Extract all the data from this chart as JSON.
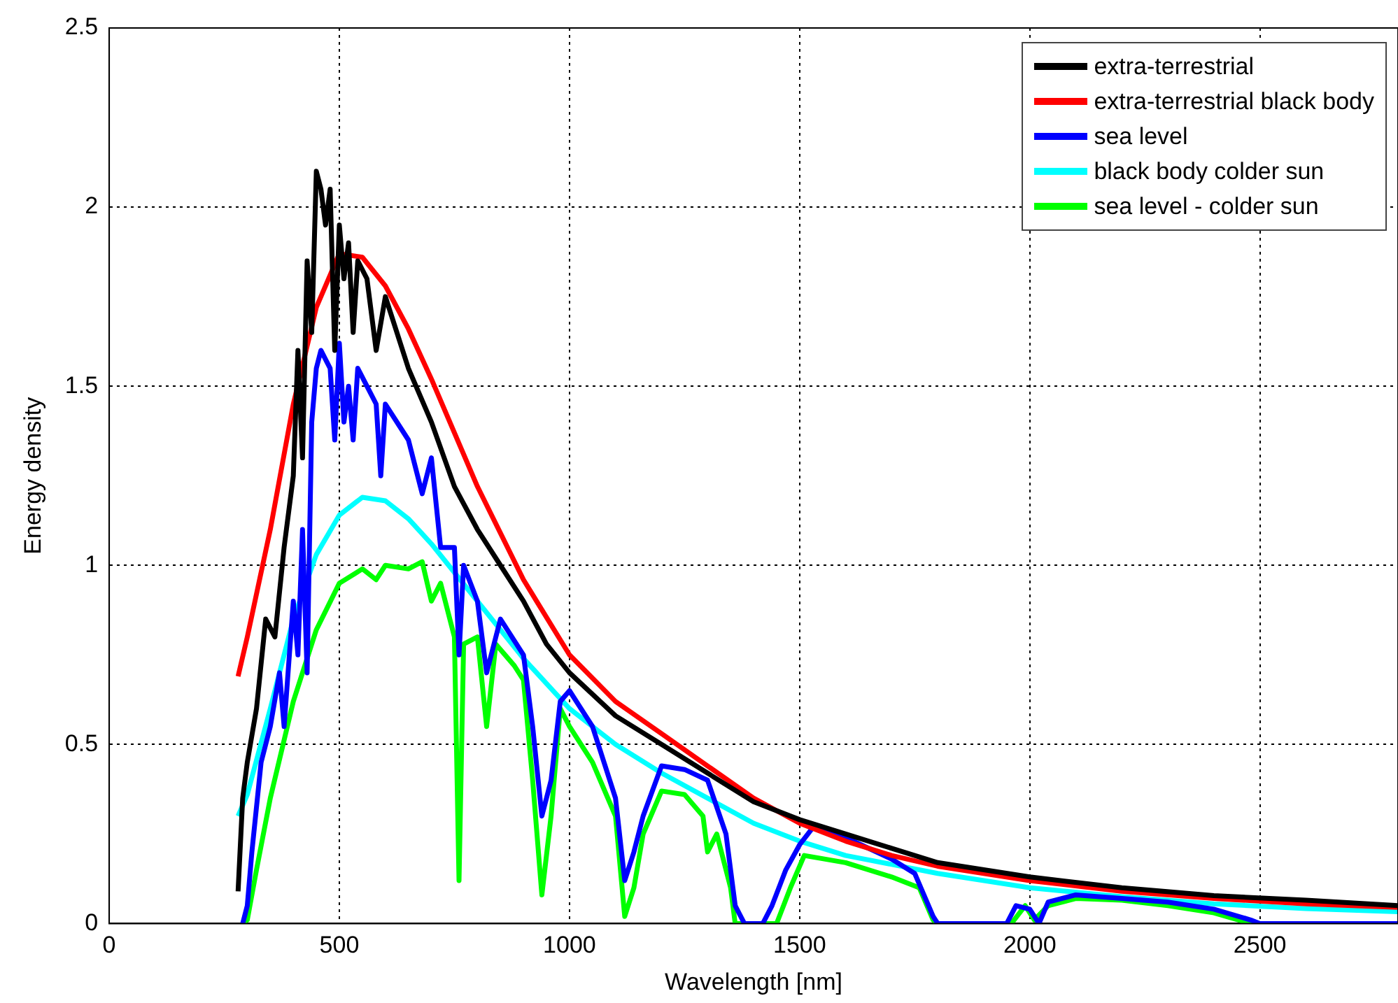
{
  "chart_data": {
    "type": "line",
    "xlabel": "Wavelength [nm]",
    "ylabel": "Energy density",
    "xlim": [
      0,
      2800
    ],
    "xticks": [
      0,
      500,
      1000,
      1500,
      2000,
      2500
    ],
    "ylim": [
      0,
      2.5
    ],
    "yticks": [
      0,
      0.5,
      1,
      1.5,
      2,
      2.5
    ],
    "grid": true,
    "legend": "top right",
    "marker": "none",
    "line_style": "solid",
    "series": [
      {
        "name": "extra-terrestrial",
        "color": "#000000",
        "x": [
          280,
          290,
          300,
          320,
          340,
          360,
          380,
          400,
          410,
          420,
          430,
          440,
          450,
          460,
          470,
          480,
          490,
          500,
          510,
          520,
          530,
          540,
          560,
          580,
          600,
          650,
          700,
          750,
          800,
          850,
          900,
          950,
          1000,
          1100,
          1200,
          1300,
          1400,
          1500,
          1600,
          1700,
          1800,
          2000,
          2200,
          2400,
          2600,
          2800
        ],
        "values": [
          0.09,
          0.35,
          0.45,
          0.6,
          0.85,
          0.8,
          1.05,
          1.25,
          1.6,
          1.3,
          1.85,
          1.65,
          2.1,
          2.05,
          1.95,
          2.05,
          1.6,
          1.95,
          1.8,
          1.9,
          1.65,
          1.85,
          1.8,
          1.6,
          1.75,
          1.55,
          1.4,
          1.22,
          1.1,
          1.0,
          0.9,
          0.78,
          0.7,
          0.58,
          0.5,
          0.42,
          0.34,
          0.29,
          0.25,
          0.21,
          0.17,
          0.13,
          0.1,
          0.078,
          0.065,
          0.05
        ]
      },
      {
        "name": "extra-terrestrial black body",
        "color": "#ff0000",
        "x": [
          280,
          300,
          350,
          400,
          450,
          500,
          550,
          600,
          650,
          700,
          800,
          900,
          1000,
          1100,
          1200,
          1300,
          1400,
          1500,
          1600,
          1700,
          1800,
          2000,
          2200,
          2400,
          2600,
          2800
        ],
        "values": [
          0.69,
          0.8,
          1.1,
          1.45,
          1.72,
          1.87,
          1.86,
          1.78,
          1.66,
          1.52,
          1.22,
          0.96,
          0.75,
          0.62,
          0.53,
          0.44,
          0.35,
          0.28,
          0.23,
          0.19,
          0.16,
          0.12,
          0.09,
          0.07,
          0.055,
          0.045
        ]
      },
      {
        "name": "sea level",
        "color": "#0000ff",
        "x": [
          290,
          300,
          310,
          330,
          350,
          370,
          380,
          400,
          410,
          420,
          430,
          440,
          450,
          460,
          480,
          490,
          500,
          510,
          520,
          530,
          540,
          560,
          580,
          590,
          600,
          650,
          680,
          700,
          720,
          750,
          760,
          770,
          800,
          820,
          850,
          900,
          920,
          940,
          960,
          980,
          1000,
          1050,
          1100,
          1120,
          1140,
          1160,
          1200,
          1250,
          1300,
          1340,
          1360,
          1380,
          1420,
          1440,
          1470,
          1500,
          1530,
          1600,
          1700,
          1750,
          1790,
          1800,
          1950,
          1970,
          2000,
          2020,
          2040,
          2100,
          2200,
          2300,
          2400,
          2480,
          2500,
          2800
        ],
        "values": [
          0,
          0.05,
          0.2,
          0.45,
          0.55,
          0.7,
          0.55,
          0.9,
          0.75,
          1.1,
          0.7,
          1.4,
          1.55,
          1.6,
          1.55,
          1.35,
          1.62,
          1.4,
          1.5,
          1.35,
          1.55,
          1.5,
          1.45,
          1.25,
          1.45,
          1.35,
          1.2,
          1.3,
          1.05,
          1.05,
          0.75,
          1.0,
          0.9,
          0.7,
          0.85,
          0.75,
          0.55,
          0.3,
          0.4,
          0.62,
          0.65,
          0.55,
          0.35,
          0.12,
          0.2,
          0.3,
          0.44,
          0.43,
          0.4,
          0.25,
          0.05,
          0,
          0,
          0.05,
          0.15,
          0.22,
          0.27,
          0.24,
          0.18,
          0.14,
          0.02,
          0,
          0,
          0.05,
          0.04,
          0,
          0.06,
          0.08,
          0.07,
          0.06,
          0.04,
          0.01,
          0,
          0
        ]
      },
      {
        "name": "black body colder sun",
        "color": "#00ffff",
        "x": [
          280,
          300,
          350,
          400,
          450,
          500,
          550,
          600,
          650,
          700,
          800,
          900,
          1000,
          1100,
          1200,
          1300,
          1400,
          1500,
          1600,
          1800,
          2000,
          2200,
          2400,
          2600,
          2800
        ],
        "values": [
          0.3,
          0.36,
          0.6,
          0.85,
          1.03,
          1.14,
          1.19,
          1.18,
          1.13,
          1.06,
          0.9,
          0.74,
          0.6,
          0.5,
          0.42,
          0.35,
          0.28,
          0.23,
          0.19,
          0.14,
          0.1,
          0.075,
          0.055,
          0.042,
          0.033
        ]
      },
      {
        "name": "sea level - colder sun",
        "color": "#00ff00",
        "x": [
          290,
          300,
          320,
          350,
          400,
          450,
          500,
          550,
          580,
          600,
          650,
          680,
          700,
          720,
          750,
          760,
          770,
          800,
          820,
          840,
          880,
          900,
          920,
          940,
          960,
          980,
          1000,
          1050,
          1100,
          1120,
          1140,
          1160,
          1200,
          1250,
          1290,
          1300,
          1320,
          1350,
          1360,
          1450,
          1480,
          1510,
          1600,
          1700,
          1760,
          1790,
          1800,
          1960,
          1990,
          2010,
          2040,
          2100,
          2200,
          2300,
          2400,
          2480,
          2800
        ],
        "values": [
          0,
          0.01,
          0.15,
          0.35,
          0.62,
          0.82,
          0.95,
          0.99,
          0.96,
          1.0,
          0.99,
          1.01,
          0.9,
          0.95,
          0.8,
          0.12,
          0.78,
          0.8,
          0.55,
          0.78,
          0.72,
          0.68,
          0.4,
          0.08,
          0.3,
          0.6,
          0.55,
          0.45,
          0.3,
          0.02,
          0.1,
          0.25,
          0.37,
          0.36,
          0.3,
          0.2,
          0.25,
          0.1,
          0,
          0,
          0.1,
          0.19,
          0.17,
          0.13,
          0.1,
          0.01,
          0,
          0,
          0.05,
          0.01,
          0.05,
          0.07,
          0.065,
          0.05,
          0.03,
          0,
          0
        ]
      }
    ]
  }
}
